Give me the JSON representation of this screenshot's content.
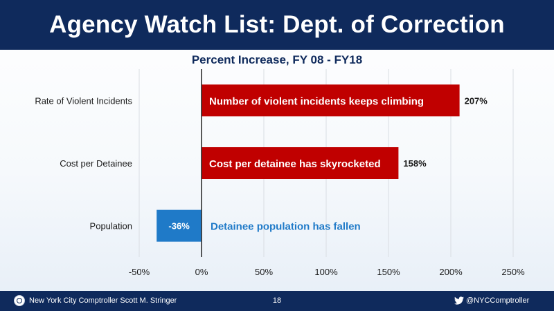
{
  "header": {
    "title": "Agency Watch List: Dept. of Correction"
  },
  "footer": {
    "org": "New York City Comptroller Scott M. Stringer",
    "page": "18",
    "handle": "@NYCComptroller",
    "icons": [
      "seal-icon",
      "twitter-icon"
    ]
  },
  "colors": {
    "header_bg": "#0f2a5c",
    "increase_bar": "#c00000",
    "decrease_bar": "#1f7ac8",
    "decrease_note_text": "#1f7ac8",
    "title_text": "#0f2a5c"
  },
  "chart_data": {
    "type": "bar",
    "orientation": "horizontal",
    "title": "Percent Increase, FY 08 - FY18",
    "xlabel": "",
    "ylabel": "",
    "categories": [
      "Rate of Violent Incidents",
      "Cost per Detainee",
      "Population"
    ],
    "values": [
      207,
      158,
      -36
    ],
    "value_labels": [
      "207%",
      "158%",
      "-36%"
    ],
    "annotations": [
      "Number of violent incidents keeps climbing",
      "Cost per detainee has skyrocketed",
      "Detainee population has fallen"
    ],
    "xlim": [
      -50,
      250
    ],
    "xticks": [
      -50,
      0,
      50,
      100,
      150,
      200,
      250
    ],
    "xtick_labels": [
      "-50%",
      "0%",
      "50%",
      "100%",
      "150%",
      "200%",
      "250%"
    ],
    "grid": true,
    "legend": "none"
  }
}
